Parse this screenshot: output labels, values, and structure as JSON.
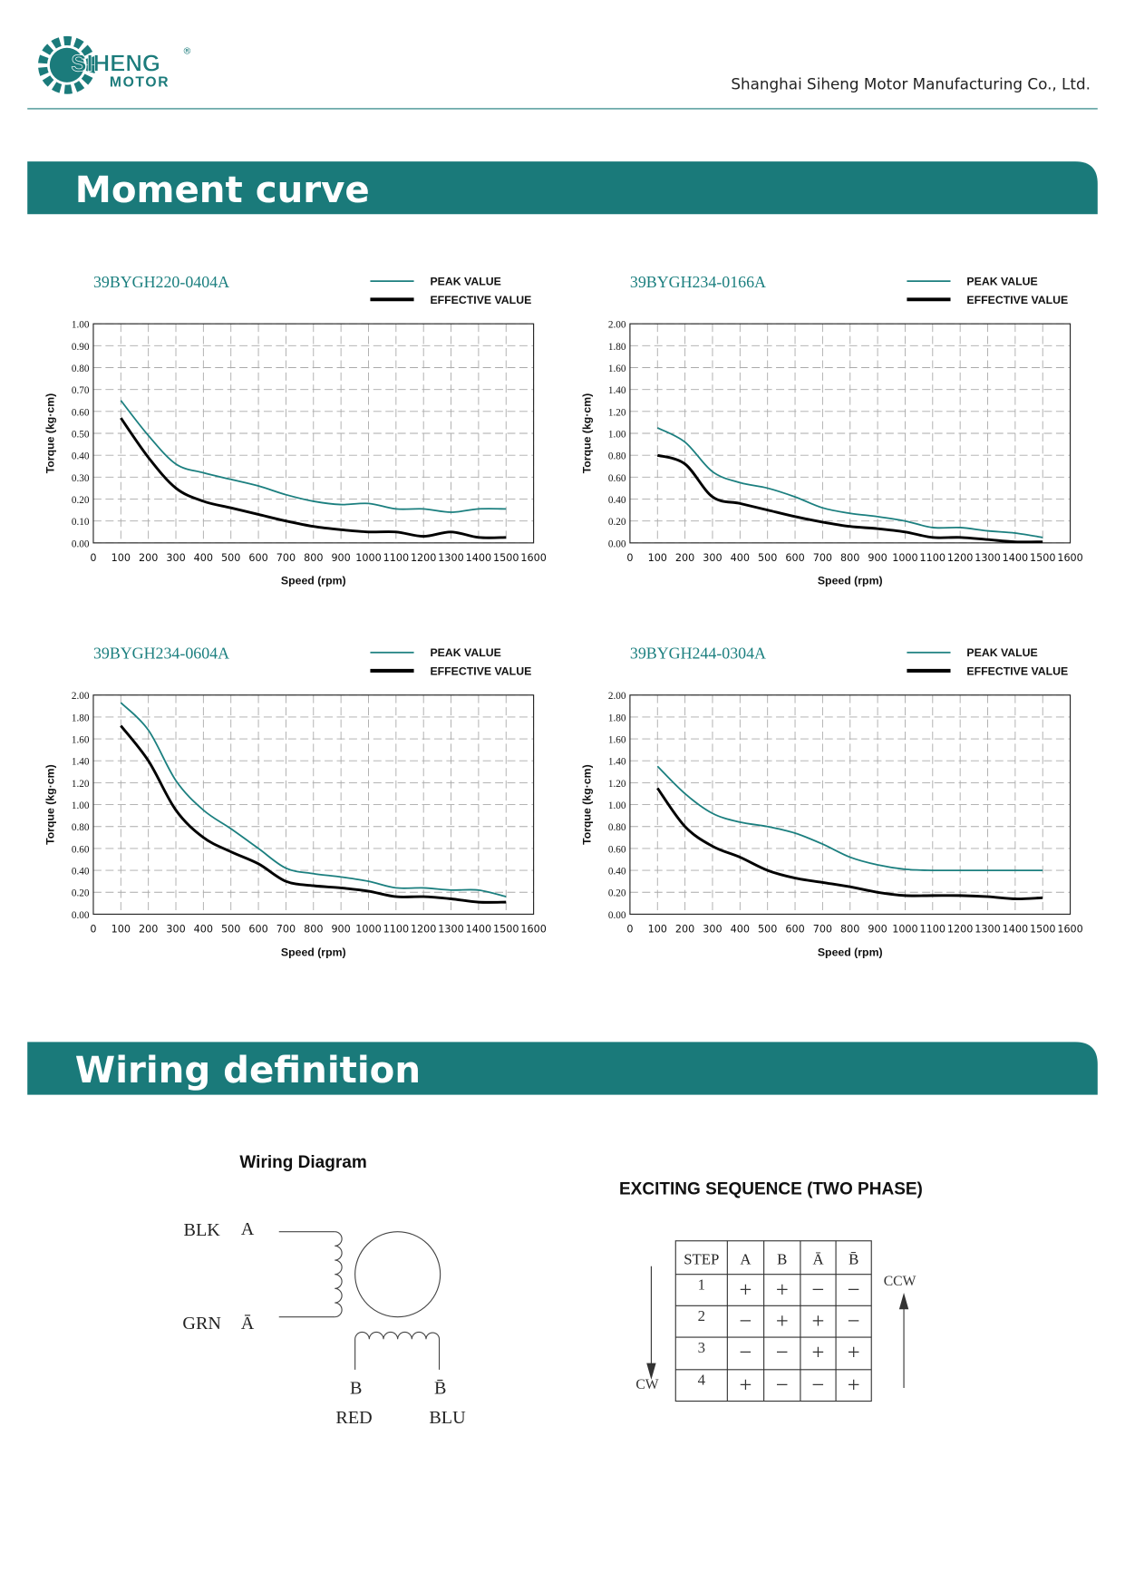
{
  "header": {
    "logo_top": "SIHENG",
    "logo_bottom": "MOTOR",
    "logo_mark": "®",
    "company": "Shanghai Siheng Motor Manufacturing Co., Ltd."
  },
  "sections": [
    "Moment curve",
    "Wiring definition"
  ],
  "chart_data": [
    {
      "type": "line",
      "title": "39BYGH220-0404A",
      "x_label": "Speed (rpm)",
      "y_label": "Torque (kg·cm)",
      "grid": true,
      "xlim": [
        0,
        1600
      ],
      "xticks": [
        0,
        100,
        200,
        300,
        400,
        500,
        600,
        700,
        800,
        900,
        1000,
        1100,
        1200,
        1300,
        1400,
        1500,
        1600
      ],
      "ylim": [
        0,
        1
      ],
      "yticks": [
        {
          "value": 0,
          "label": "0.00"
        },
        {
          "value": 0.1,
          "label": "0.10"
        },
        {
          "value": 0.2,
          "label": "0.20"
        },
        {
          "value": 0.3,
          "label": "0.30"
        },
        {
          "value": 0.4,
          "label": "0.40"
        },
        {
          "value": 0.5,
          "label": "0.50"
        },
        {
          "value": 0.6,
          "label": "0.60"
        },
        {
          "value": 0.7,
          "label": "0.70"
        },
        {
          "value": 0.8,
          "label": "0.80"
        },
        {
          "value": 0.9,
          "label": "0.90"
        },
        {
          "value": 1,
          "label": "1.00"
        }
      ],
      "x": [
        100,
        200,
        300,
        400,
        500,
        600,
        700,
        800,
        900,
        1000,
        1100,
        1200,
        1300,
        1400,
        1500
      ],
      "series": [
        {
          "name": "PEAK VALUE",
          "color": "#1b7f7f",
          "values": [
            0.65,
            0.49,
            0.36,
            0.32,
            0.29,
            0.26,
            0.22,
            0.19,
            0.175,
            0.18,
            0.155,
            0.155,
            0.14,
            0.155,
            0.155
          ]
        },
        {
          "name": "EFFECTIVE VALUE",
          "color": "#000000",
          "values": [
            0.57,
            0.39,
            0.25,
            0.19,
            0.16,
            0.13,
            0.1,
            0.075,
            0.06,
            0.05,
            0.05,
            0.03,
            0.05,
            0.025,
            0.025
          ]
        }
      ]
    },
    {
      "type": "line",
      "title": "39BYGH234-0166A",
      "x_label": "Speed (rpm)",
      "y_label": "Torque (kg·cm)",
      "grid": true,
      "xlim": [
        0,
        1600
      ],
      "xticks": [
        0,
        100,
        200,
        300,
        400,
        500,
        600,
        700,
        800,
        900,
        1000,
        1100,
        1200,
        1300,
        1400,
        1500,
        1600
      ],
      "ylim": [
        0,
        2
      ],
      "yticks": [
        {
          "value": 0,
          "label": "0.00"
        },
        {
          "value": 0.2,
          "label": "0.20"
        },
        {
          "value": 0.4,
          "label": "0.40"
        },
        {
          "value": 0.6,
          "label": "0.60"
        },
        {
          "value": 0.8,
          "label": "0.80"
        },
        {
          "value": 1,
          "label": "1.00"
        },
        {
          "value": 1.2,
          "label": "1.20"
        },
        {
          "value": 1.4,
          "label": "1.40"
        },
        {
          "value": 1.6,
          "label": "1.60"
        },
        {
          "value": 1.8,
          "label": "1.80"
        },
        {
          "value": 2,
          "label": "2.00"
        }
      ],
      "x": [
        100,
        200,
        300,
        400,
        500,
        600,
        700,
        800,
        900,
        1000,
        1100,
        1200,
        1300,
        1400,
        1500
      ],
      "series": [
        {
          "name": "PEAK VALUE",
          "color": "#1b7f7f",
          "values": [
            1.05,
            0.92,
            0.65,
            0.55,
            0.5,
            0.42,
            0.32,
            0.27,
            0.24,
            0.2,
            0.14,
            0.14,
            0.11,
            0.09,
            0.05
          ]
        },
        {
          "name": "EFFECTIVE VALUE",
          "color": "#000000",
          "values": [
            0.8,
            0.72,
            0.42,
            0.36,
            0.3,
            0.24,
            0.19,
            0.15,
            0.13,
            0.1,
            0.05,
            0.05,
            0.03,
            0.01,
            0.01
          ]
        }
      ]
    },
    {
      "type": "line",
      "title": "39BYGH234-0604A",
      "x_label": "Speed (rpm)",
      "y_label": "Torque (kg·cm)",
      "grid": true,
      "xlim": [
        0,
        1600
      ],
      "xticks": [
        0,
        100,
        200,
        300,
        400,
        500,
        600,
        700,
        800,
        900,
        1000,
        1100,
        1200,
        1300,
        1400,
        1500,
        1600
      ],
      "ylim": [
        0,
        2
      ],
      "yticks": [
        {
          "value": 0,
          "label": "0.00"
        },
        {
          "value": 0.2,
          "label": "0.20"
        },
        {
          "value": 0.4,
          "label": "0.40"
        },
        {
          "value": 0.6,
          "label": "0.60"
        },
        {
          "value": 0.8,
          "label": "0.80"
        },
        {
          "value": 1,
          "label": "1.00"
        },
        {
          "value": 1.2,
          "label": "1.20"
        },
        {
          "value": 1.4,
          "label": "1.40"
        },
        {
          "value": 1.6,
          "label": "1.60"
        },
        {
          "value": 1.8,
          "label": "1.80"
        },
        {
          "value": 2,
          "label": "2.00"
        }
      ],
      "x": [
        100,
        200,
        300,
        400,
        500,
        600,
        700,
        800,
        900,
        1000,
        1100,
        1200,
        1300,
        1400,
        1500
      ],
      "series": [
        {
          "name": "PEAK VALUE",
          "color": "#1b7f7f",
          "values": [
            1.93,
            1.68,
            1.22,
            0.95,
            0.78,
            0.6,
            0.42,
            0.37,
            0.34,
            0.3,
            0.24,
            0.24,
            0.22,
            0.22,
            0.16
          ]
        },
        {
          "name": "EFFECTIVE VALUE",
          "color": "#000000",
          "values": [
            1.72,
            1.4,
            0.95,
            0.7,
            0.57,
            0.46,
            0.3,
            0.26,
            0.24,
            0.21,
            0.16,
            0.16,
            0.14,
            0.11,
            0.11
          ]
        }
      ]
    },
    {
      "type": "line",
      "title": "39BYGH244-0304A",
      "x_label": "Speed (rpm)",
      "y_label": "Torque (kg·cm)",
      "grid": true,
      "xlim": [
        0,
        1600
      ],
      "xticks": [
        0,
        100,
        200,
        300,
        400,
        500,
        600,
        700,
        800,
        900,
        1000,
        1100,
        1200,
        1300,
        1400,
        1500,
        1600
      ],
      "ylim": [
        0,
        2
      ],
      "yticks": [
        {
          "value": 0,
          "label": "0.00"
        },
        {
          "value": 0.2,
          "label": "0.20"
        },
        {
          "value": 0.4,
          "label": "0.40"
        },
        {
          "value": 0.6,
          "label": "0.60"
        },
        {
          "value": 0.8,
          "label": "0.80"
        },
        {
          "value": 1,
          "label": "1.00"
        },
        {
          "value": 1.2,
          "label": "1.20"
        },
        {
          "value": 1.4,
          "label": "1.40"
        },
        {
          "value": 1.6,
          "label": "1.60"
        },
        {
          "value": 1.8,
          "label": "1.80"
        },
        {
          "value": 2,
          "label": "2.00"
        }
      ],
      "x": [
        100,
        200,
        300,
        400,
        500,
        600,
        700,
        800,
        900,
        1000,
        1100,
        1200,
        1300,
        1400,
        1500
      ],
      "series": [
        {
          "name": "PEAK VALUE",
          "color": "#1b7f7f",
          "values": [
            1.35,
            1.1,
            0.92,
            0.84,
            0.8,
            0.74,
            0.64,
            0.52,
            0.45,
            0.41,
            0.4,
            0.4,
            0.4,
            0.4,
            0.4
          ]
        },
        {
          "name": "EFFECTIVE VALUE",
          "color": "#000000",
          "values": [
            1.15,
            0.8,
            0.62,
            0.52,
            0.4,
            0.33,
            0.29,
            0.25,
            0.2,
            0.17,
            0.17,
            0.17,
            0.16,
            0.14,
            0.15
          ]
        }
      ]
    }
  ],
  "wiring": {
    "title": "Wiring Diagram",
    "blk": "BLK",
    "a": "A",
    "grn": "GRN",
    "a_bar": "Ā",
    "b": "B",
    "b_bar": "B̄",
    "red": "RED",
    "blu": "BLU"
  },
  "sequence": {
    "title": "EXCITING SEQUENCE (TWO PHASE)",
    "columns": [
      "STEP",
      "A",
      "B",
      "Ā",
      "B̄"
    ],
    "rows": [
      [
        "1",
        "+",
        "+",
        "−",
        "−"
      ],
      [
        "2",
        "−",
        "+",
        "+",
        "−"
      ],
      [
        "3",
        "−",
        "−",
        "+",
        "+"
      ],
      [
        "4",
        "+",
        "−",
        "−",
        "+"
      ]
    ],
    "cw": "CW",
    "ccw": "CCW"
  }
}
